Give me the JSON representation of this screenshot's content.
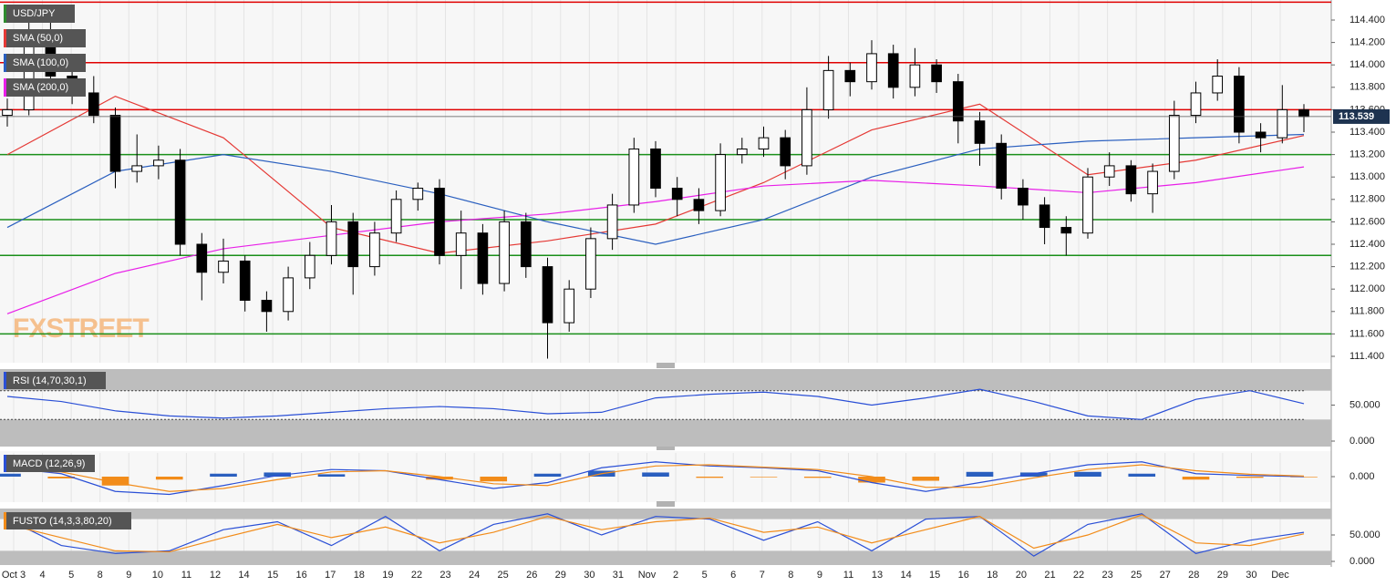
{
  "chart_data": [
    {
      "type": "candlestick",
      "title": "USD/JPY",
      "watermark": "FXSTREET",
      "open": [
        113.55,
        113.6,
        114.3,
        113.9,
        113.75,
        113.55,
        113.05,
        113.1,
        113.15,
        112.4,
        112.15,
        112.25,
        111.9,
        111.8,
        112.1,
        112.3,
        112.6,
        112.2,
        112.5,
        112.8,
        112.9,
        112.3,
        112.5,
        112.05,
        112.6,
        112.2,
        111.7,
        112.0,
        112.45,
        112.75,
        113.25,
        112.9,
        112.8,
        112.7,
        113.2,
        113.25,
        113.35,
        113.1,
        113.6,
        113.95,
        113.85,
        114.1,
        113.8,
        114.0,
        113.85,
        113.5,
        113.3,
        112.9,
        112.75,
        112.55,
        112.5,
        113.0,
        113.1,
        112.85,
        113.05,
        113.55,
        113.75,
        113.9,
        113.4,
        113.35,
        113.6
      ],
      "high": [
        113.7,
        114.45,
        114.4,
        113.98,
        113.9,
        113.62,
        113.38,
        113.28,
        113.25,
        112.5,
        112.45,
        112.3,
        111.98,
        112.2,
        112.42,
        112.75,
        112.68,
        112.6,
        112.88,
        112.95,
        112.98,
        112.7,
        112.58,
        112.7,
        112.68,
        112.28,
        112.08,
        112.55,
        112.85,
        113.35,
        113.32,
        113.0,
        112.9,
        113.3,
        113.35,
        113.45,
        113.42,
        113.8,
        114.08,
        114.02,
        114.22,
        114.18,
        114.15,
        114.05,
        113.92,
        113.58,
        113.38,
        112.98,
        112.82,
        112.65,
        113.08,
        113.22,
        113.15,
        113.12,
        113.68,
        113.85,
        114.05,
        113.98,
        113.48,
        113.82,
        113.65
      ],
      "low": [
        113.45,
        113.55,
        113.8,
        113.65,
        113.48,
        112.9,
        112.95,
        112.98,
        112.3,
        111.9,
        112.05,
        111.8,
        111.62,
        111.72,
        112.0,
        112.22,
        111.95,
        112.12,
        112.42,
        112.7,
        112.22,
        112.0,
        111.95,
        111.98,
        112.1,
        111.38,
        111.62,
        111.92,
        112.35,
        112.68,
        112.82,
        112.65,
        112.58,
        112.65,
        113.12,
        113.18,
        112.98,
        113.02,
        113.52,
        113.72,
        113.78,
        113.7,
        113.72,
        113.75,
        113.3,
        113.1,
        112.8,
        112.62,
        112.4,
        112.3,
        112.45,
        112.92,
        112.78,
        112.68,
        112.98,
        113.48,
        113.68,
        113.3,
        113.22,
        113.3,
        113.4
      ],
      "close": [
        113.6,
        114.3,
        113.9,
        113.75,
        113.55,
        113.05,
        113.1,
        113.15,
        112.4,
        112.15,
        112.25,
        111.9,
        111.8,
        112.1,
        112.3,
        112.6,
        112.2,
        112.5,
        112.8,
        112.9,
        112.3,
        112.5,
        112.05,
        112.6,
        112.2,
        111.7,
        112.0,
        112.45,
        112.75,
        113.25,
        112.9,
        112.8,
        112.7,
        113.2,
        113.25,
        113.35,
        113.1,
        113.6,
        113.95,
        113.85,
        114.1,
        113.8,
        114.0,
        113.85,
        113.5,
        113.3,
        112.9,
        112.75,
        112.55,
        112.5,
        113.0,
        113.1,
        112.85,
        113.05,
        113.55,
        113.75,
        113.9,
        113.4,
        113.35,
        113.6,
        113.54
      ],
      "series": [
        {
          "name": "SMA (50,0)",
          "color": "#e53935",
          "values": [
            113.2,
            113.72,
            113.35,
            112.55,
            112.32,
            112.43,
            112.58,
            112.95,
            113.42,
            113.65,
            113.02,
            113.15,
            113.37
          ]
        },
        {
          "name": "SMA (100,0)",
          "color": "#2a5fbf",
          "values": [
            112.55,
            113.05,
            113.2,
            113.05,
            112.85,
            112.6,
            112.4,
            112.62,
            113.0,
            113.25,
            113.32,
            113.35,
            113.38
          ]
        },
        {
          "name": "SMA (200,0)",
          "color": "#e81ee8",
          "values": [
            111.78,
            112.14,
            112.36,
            112.48,
            112.6,
            112.67,
            112.78,
            112.92,
            112.97,
            112.92,
            112.86,
            112.95,
            113.09
          ]
        }
      ],
      "resistance_levels": [
        114.56,
        114.02,
        113.6
      ],
      "resistance_color": "#e00000",
      "support_levels": [
        113.2,
        112.62,
        112.3,
        111.6
      ],
      "support_color": "#1a8f1a",
      "last_price": {
        "value": 113.539,
        "label": "113.539"
      },
      "ylim": [
        111.343,
        114.579
      ],
      "yticks": [
        {
          "value": 111.4,
          "label": "111.400"
        },
        {
          "value": 111.6,
          "label": "111.600"
        },
        {
          "value": 111.8,
          "label": "111.800"
        },
        {
          "value": 112.0,
          "label": "112.000"
        },
        {
          "value": 112.2,
          "label": "112.200"
        },
        {
          "value": 112.4,
          "label": "112.400"
        },
        {
          "value": 112.6,
          "label": "112.600"
        },
        {
          "value": 112.8,
          "label": "112.800"
        },
        {
          "value": 113.0,
          "label": "113.000"
        },
        {
          "value": 113.2,
          "label": "113.200"
        },
        {
          "value": 113.4,
          "label": "113.400"
        },
        {
          "value": 113.6,
          "label": "113.600"
        },
        {
          "value": 113.8,
          "label": "113.800"
        },
        {
          "value": 114.0,
          "label": "114.000"
        },
        {
          "value": 114.2,
          "label": "114.200"
        },
        {
          "value": 114.4,
          "label": "114.400"
        }
      ],
      "x_labels": [
        "Oct 3",
        "4",
        "5",
        "8",
        "9",
        "10",
        "11",
        "12",
        "14",
        "15",
        "16",
        "17",
        "18",
        "19",
        "22",
        "23",
        "24",
        "25",
        "26",
        "29",
        "30",
        "31",
        "Nov",
        "2",
        "5",
        "6",
        "7",
        "8",
        "9",
        "11",
        "13",
        "14",
        "15",
        "16",
        "18",
        "20",
        "21",
        "22",
        "23",
        "25",
        "27",
        "28",
        "29",
        "30",
        "Dec"
      ]
    },
    {
      "type": "line",
      "title": "RSI (14,70,30,1)",
      "color": "#2a4fd6",
      "values": [
        62,
        55,
        42,
        35,
        32,
        35,
        40,
        45,
        48,
        45,
        38,
        40,
        60,
        65,
        68,
        62,
        50,
        60,
        72,
        55,
        35,
        30,
        58,
        70,
        52
      ],
      "bands": [
        70,
        30
      ],
      "ylim": [
        0,
        100
      ],
      "yticks": [
        {
          "value": 50,
          "label": "50.000"
        },
        {
          "value": 0,
          "label": "0.000"
        }
      ]
    },
    {
      "type": "macd",
      "title": "MACD (12,26,9)",
      "lines": [
        {
          "color": "#2a4fd6",
          "values": [
            0.15,
            0.05,
            -0.25,
            -0.3,
            -0.15,
            0.02,
            0.12,
            0.1,
            -0.05,
            -0.2,
            -0.1,
            0.15,
            0.25,
            0.18,
            0.15,
            0.1,
            -0.1,
            -0.25,
            -0.1,
            0.05,
            0.2,
            0.25,
            0.05,
            0.02,
            0.0
          ]
        },
        {
          "color": "#f28c1a",
          "values": [
            0.1,
            0.08,
            -0.1,
            -0.25,
            -0.2,
            -0.05,
            0.08,
            0.1,
            0.0,
            -0.12,
            -0.15,
            0.05,
            0.18,
            0.2,
            0.16,
            0.12,
            0.0,
            -0.18,
            -0.18,
            -0.02,
            0.12,
            0.2,
            0.1,
            0.04,
            0.01
          ]
        }
      ],
      "histogram": {
        "positive_color": "#2a5fbf",
        "negative_color": "#f28c1a",
        "values": [
          0.05,
          -0.03,
          -0.15,
          -0.05,
          0.05,
          0.07,
          0.04,
          0,
          -0.05,
          -0.08,
          0.05,
          0.1,
          0.07,
          -0.02,
          -0.01,
          -0.02,
          -0.1,
          -0.07,
          0.08,
          0.07,
          0.08,
          0.05,
          -0.05,
          -0.02,
          -0.01
        ]
      },
      "ylim": [
        -0.4,
        0.4
      ],
      "yticks": [
        {
          "value": 0,
          "label": "0.000"
        }
      ]
    },
    {
      "type": "stochastic",
      "title": "FUSTO (14,3,3,80,20)",
      "lines": [
        {
          "color": "#2a4fd6",
          "values": [
            80,
            30,
            15,
            20,
            60,
            75,
            30,
            85,
            20,
            70,
            90,
            50,
            85,
            80,
            40,
            75,
            20,
            80,
            85,
            10,
            70,
            90,
            15,
            40,
            55
          ]
        },
        {
          "color": "#f28c1a",
          "values": [
            70,
            45,
            20,
            18,
            45,
            70,
            45,
            65,
            35,
            55,
            85,
            60,
            75,
            82,
            55,
            65,
            35,
            60,
            85,
            25,
            50,
            88,
            35,
            30,
            52
          ]
        }
      ],
      "bands": [
        80,
        20
      ],
      "ylim": [
        0,
        100
      ],
      "yticks": [
        {
          "value": 50,
          "label": "50.000"
        },
        {
          "value": 0,
          "label": "0.000"
        }
      ]
    }
  ]
}
